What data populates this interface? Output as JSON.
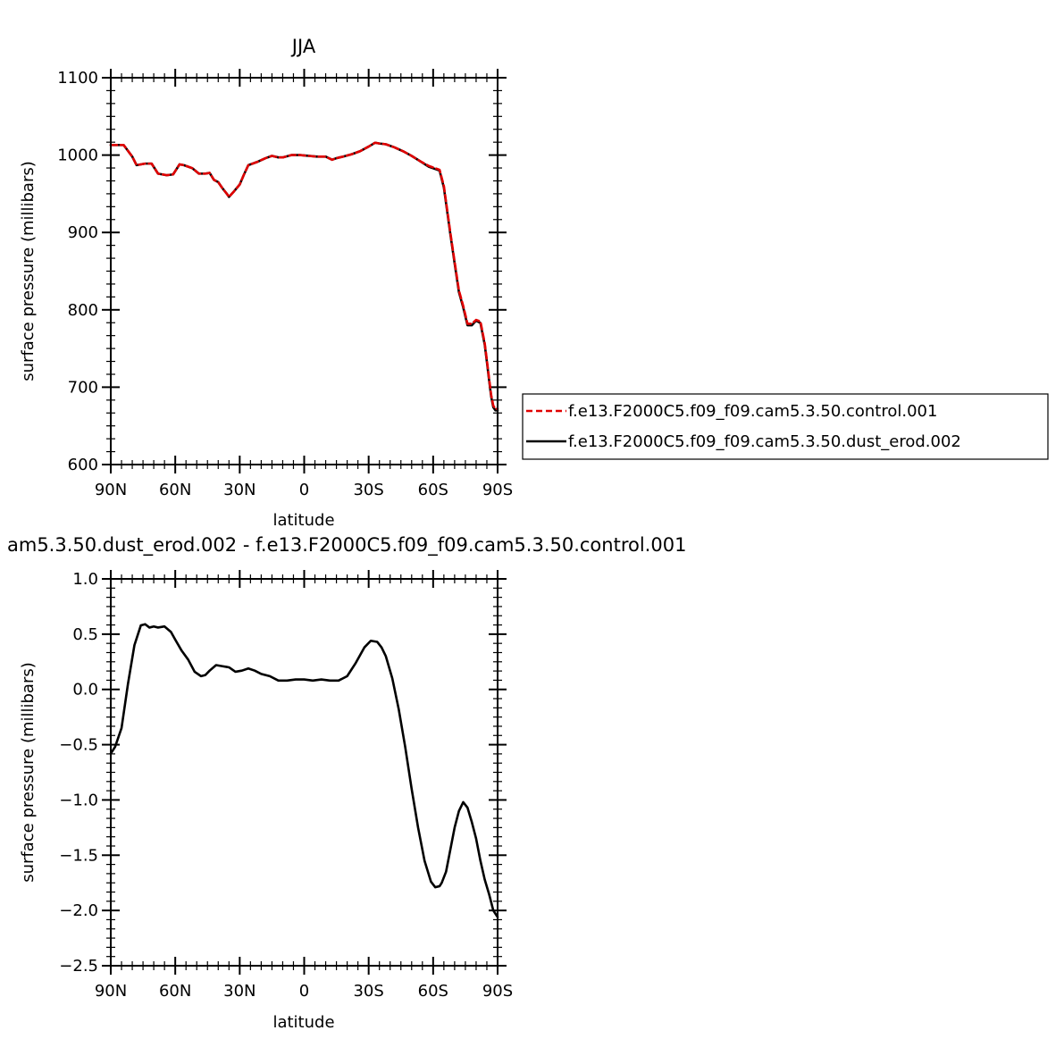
{
  "chart_data": [
    {
      "type": "line",
      "title": "JJA",
      "xlabel": "latitude",
      "ylabel": "surface pressure (millibars)",
      "xlim": [
        -90,
        90
      ],
      "ylim": [
        600,
        1100
      ],
      "x_ticks": [
        {
          "value": -90,
          "label": "90N"
        },
        {
          "value": -60,
          "label": "60N"
        },
        {
          "value": -30,
          "label": "30N"
        },
        {
          "value": 0,
          "label": "0"
        },
        {
          "value": 30,
          "label": "30S"
        },
        {
          "value": 60,
          "label": "60S"
        },
        {
          "value": 90,
          "label": "90S"
        }
      ],
      "y_ticks": [
        {
          "value": 600,
          "label": "600"
        },
        {
          "value": 700,
          "label": "700"
        },
        {
          "value": 800,
          "label": "800"
        },
        {
          "value": 900,
          "label": "900"
        },
        {
          "value": 1000,
          "label": "1000"
        },
        {
          "value": 1100,
          "label": "1100"
        }
      ],
      "legend_position": "right",
      "series": [
        {
          "name": "f.e13.F2000C5.f09_f09.cam5.3.50.control.001",
          "color": "#e00000",
          "dash": "dashed",
          "x": [
            -90,
            -84,
            -80,
            -78,
            -74,
            -71,
            -68,
            -64,
            -61,
            -58,
            -56,
            -52,
            -49,
            -46,
            -44,
            -42,
            -40,
            -38,
            -36,
            -35,
            -33,
            -30,
            -28,
            -26,
            -22,
            -18,
            -15,
            -12,
            -10,
            -6,
            -2,
            2,
            6,
            10,
            13,
            15,
            18,
            22,
            26,
            30,
            33,
            35,
            38,
            42,
            46,
            50,
            54,
            58,
            61,
            63,
            65,
            67,
            68,
            70,
            72,
            74,
            76,
            78,
            80,
            82,
            84,
            85,
            86,
            87,
            88,
            89,
            90
          ],
          "y": [
            1013,
            1013,
            998,
            987,
            989,
            989,
            976,
            974,
            975,
            988,
            987,
            983,
            976,
            976,
            977,
            968,
            965,
            957,
            950,
            946,
            952,
            962,
            975,
            987,
            991,
            996,
            999,
            997,
            997,
            1000,
            1000,
            999,
            998,
            998,
            994,
            996,
            998,
            1001,
            1005,
            1011,
            1016,
            1015,
            1014,
            1010,
            1005,
            999,
            992,
            986,
            983,
            981,
            960,
            920,
            900,
            862,
            825,
            805,
            782,
            782,
            787,
            785,
            757,
            735,
            712,
            690,
            676,
            672,
            672
          ]
        },
        {
          "name": "f.e13.F2000C5.f09_f09.cam5.3.50.dust_erod.002",
          "color": "#000000",
          "dash": "solid",
          "x": [
            -90,
            -84,
            -80,
            -78,
            -74,
            -71,
            -68,
            -64,
            -61,
            -58,
            -56,
            -52,
            -49,
            -46,
            -44,
            -42,
            -40,
            -38,
            -36,
            -35,
            -33,
            -30,
            -28,
            -26,
            -22,
            -18,
            -15,
            -12,
            -10,
            -6,
            -2,
            2,
            6,
            10,
            13,
            15,
            18,
            22,
            26,
            30,
            33,
            35,
            38,
            42,
            46,
            50,
            54,
            58,
            61,
            63,
            65,
            67,
            68,
            70,
            72,
            74,
            76,
            78,
            80,
            82,
            84,
            85,
            86,
            87,
            88,
            89,
            90
          ],
          "y": [
            1013,
            1013,
            998,
            987,
            989,
            989,
            976,
            974,
            975,
            988,
            987,
            983,
            976,
            976,
            977,
            968,
            965,
            957,
            950,
            946,
            952,
            962,
            975,
            987,
            991,
            996,
            999,
            997,
            997,
            1000,
            1000,
            999,
            998,
            998,
            994,
            996,
            998,
            1001,
            1005,
            1011,
            1016,
            1015,
            1014,
            1010,
            1005,
            999,
            992,
            985,
            982,
            980,
            958,
            918,
            898,
            860,
            823,
            803,
            780,
            780,
            786,
            783,
            755,
            733,
            710,
            688,
            674,
            670,
            670
          ]
        }
      ]
    },
    {
      "type": "line",
      "title": "am5.3.50.dust_erod.002 - f.e13.F2000C5.f09_f09.cam5.3.50.control.001",
      "xlabel": "latitude",
      "ylabel": "surface pressure (millibars)",
      "xlim": [
        -90,
        90
      ],
      "ylim": [
        -2.5,
        1.0
      ],
      "x_ticks": [
        {
          "value": -90,
          "label": "90N"
        },
        {
          "value": -60,
          "label": "60N"
        },
        {
          "value": -30,
          "label": "30N"
        },
        {
          "value": 0,
          "label": "0"
        },
        {
          "value": 30,
          "label": "30S"
        },
        {
          "value": 60,
          "label": "60S"
        },
        {
          "value": 90,
          "label": "90S"
        }
      ],
      "y_ticks": [
        {
          "value": -2.5,
          "label": "−2.5"
        },
        {
          "value": -2.0,
          "label": "−2.0"
        },
        {
          "value": -1.5,
          "label": "−1.5"
        },
        {
          "value": -1.0,
          "label": "−1.0"
        },
        {
          "value": -0.5,
          "label": "−0.5"
        },
        {
          "value": 0.0,
          "label": "0.0"
        },
        {
          "value": 0.5,
          "label": "0.5"
        },
        {
          "value": 1.0,
          "label": "1.0"
        }
      ],
      "series": [
        {
          "color": "#000000",
          "dash": "solid",
          "x": [
            -90,
            -88,
            -85,
            -82,
            -79,
            -76,
            -74,
            -72,
            -70,
            -68,
            -65,
            -62,
            -60,
            -57,
            -54,
            -51,
            -48,
            -46,
            -44,
            -41,
            -38,
            -35,
            -32,
            -29,
            -26,
            -23,
            -20,
            -16,
            -12,
            -8,
            -4,
            0,
            4,
            8,
            12,
            16,
            20,
            24,
            28,
            31,
            34,
            36,
            38,
            41,
            44,
            47,
            50,
            53,
            56,
            59,
            61,
            63,
            64,
            66,
            68,
            70,
            72,
            74,
            76,
            78,
            80,
            82,
            84,
            86,
            88,
            90
          ],
          "y": [
            -0.58,
            -0.52,
            -0.35,
            0.05,
            0.4,
            0.58,
            0.59,
            0.56,
            0.57,
            0.56,
            0.57,
            0.52,
            0.45,
            0.35,
            0.27,
            0.16,
            0.12,
            0.13,
            0.17,
            0.22,
            0.21,
            0.2,
            0.16,
            0.17,
            0.19,
            0.17,
            0.14,
            0.12,
            0.08,
            0.08,
            0.09,
            0.09,
            0.08,
            0.09,
            0.08,
            0.08,
            0.12,
            0.24,
            0.38,
            0.44,
            0.43,
            0.38,
            0.3,
            0.1,
            -0.18,
            -0.52,
            -0.9,
            -1.25,
            -1.55,
            -1.74,
            -1.79,
            -1.78,
            -1.75,
            -1.65,
            -1.45,
            -1.25,
            -1.1,
            -1.02,
            -1.07,
            -1.2,
            -1.35,
            -1.55,
            -1.72,
            -1.85,
            -2.0,
            -2.06
          ]
        }
      ]
    }
  ]
}
